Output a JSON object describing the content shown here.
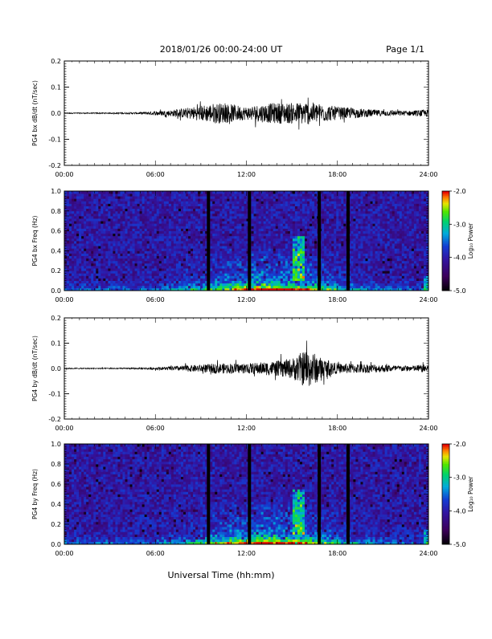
{
  "header": {
    "title": "2018/01/26  00:00-24:00 UT",
    "page": "Page 1/1"
  },
  "footer": {
    "xlabel": "Universal Time (hh:mm)"
  },
  "chart_data": [
    {
      "type": "line",
      "ylabel": "PG4 bx dB/dt (nT/sec)",
      "xlim": [
        0,
        24
      ],
      "ylim": [
        -0.2,
        0.2
      ],
      "xticks": [
        "00:00",
        "06:00",
        "12:00",
        "18:00",
        "24:00"
      ],
      "yticks": [
        "-0.2",
        "-0.1",
        "0.0",
        "0.1",
        "0.2"
      ],
      "envelope": {
        "hours": [
          0,
          3,
          5,
          6,
          7,
          8,
          9,
          10,
          11,
          12,
          13,
          14,
          15,
          16,
          17,
          18,
          19,
          20,
          21,
          22,
          23,
          24
        ],
        "amplitude": [
          0.002,
          0.002,
          0.004,
          0.008,
          0.012,
          0.02,
          0.03,
          0.04,
          0.035,
          0.025,
          0.035,
          0.04,
          0.04,
          0.045,
          0.035,
          0.025,
          0.02,
          0.015,
          0.012,
          0.01,
          0.01,
          0.015
        ]
      },
      "color": "#000000"
    },
    {
      "type": "heatmap",
      "ylabel": "PG4 bx Freq (Hz)",
      "xlim": [
        0,
        24
      ],
      "ylim": [
        0.0,
        1.0
      ],
      "xticks": [
        "00:00",
        "06:00",
        "12:00",
        "18:00",
        "24:00"
      ],
      "yticks": [
        "0.0",
        "0.2",
        "0.4",
        "0.6",
        "0.8",
        "1.0"
      ],
      "colorbar": {
        "label": "Log₁₀ Power",
        "ticks": [
          "-2.0",
          "-3.0",
          "-4.0",
          "-5.0"
        ],
        "range": [
          -5.0,
          -2.0
        ]
      },
      "gaps_hours": [
        9.5,
        12.2,
        16.8,
        18.7
      ]
    },
    {
      "type": "line",
      "ylabel": "PG4 by dB/dt (nT/sec)",
      "xlim": [
        0,
        24
      ],
      "ylim": [
        -0.2,
        0.2
      ],
      "xticks": [
        "00:00",
        "06:00",
        "12:00",
        "18:00",
        "24:00"
      ],
      "yticks": [
        "-0.2",
        "-0.1",
        "0.0",
        "0.1",
        "0.2"
      ],
      "envelope": {
        "hours": [
          0,
          3,
          5,
          6,
          7,
          8,
          9,
          10,
          11,
          12,
          13,
          14,
          15,
          16,
          17,
          18,
          19,
          20,
          21,
          22,
          23,
          24
        ],
        "amplitude": [
          0.002,
          0.002,
          0.003,
          0.005,
          0.008,
          0.012,
          0.015,
          0.02,
          0.02,
          0.02,
          0.025,
          0.03,
          0.04,
          0.08,
          0.04,
          0.02,
          0.02,
          0.018,
          0.015,
          0.012,
          0.012,
          0.018
        ]
      },
      "color": "#000000"
    },
    {
      "type": "heatmap",
      "ylabel": "PG4 by Freq (Hz)",
      "xlim": [
        0,
        24
      ],
      "ylim": [
        0.0,
        1.0
      ],
      "xticks": [
        "00:00",
        "06:00",
        "12:00",
        "18:00",
        "24:00"
      ],
      "yticks": [
        "0.0",
        "0.2",
        "0.4",
        "0.6",
        "0.8",
        "1.0"
      ],
      "colorbar": {
        "label": "Log₁₀ Power",
        "ticks": [
          "-2.0",
          "-3.0",
          "-4.0",
          "-5.0"
        ],
        "range": [
          -5.0,
          -2.0
        ]
      },
      "gaps_hours": [
        9.5,
        12.2,
        16.8,
        18.7
      ]
    }
  ]
}
